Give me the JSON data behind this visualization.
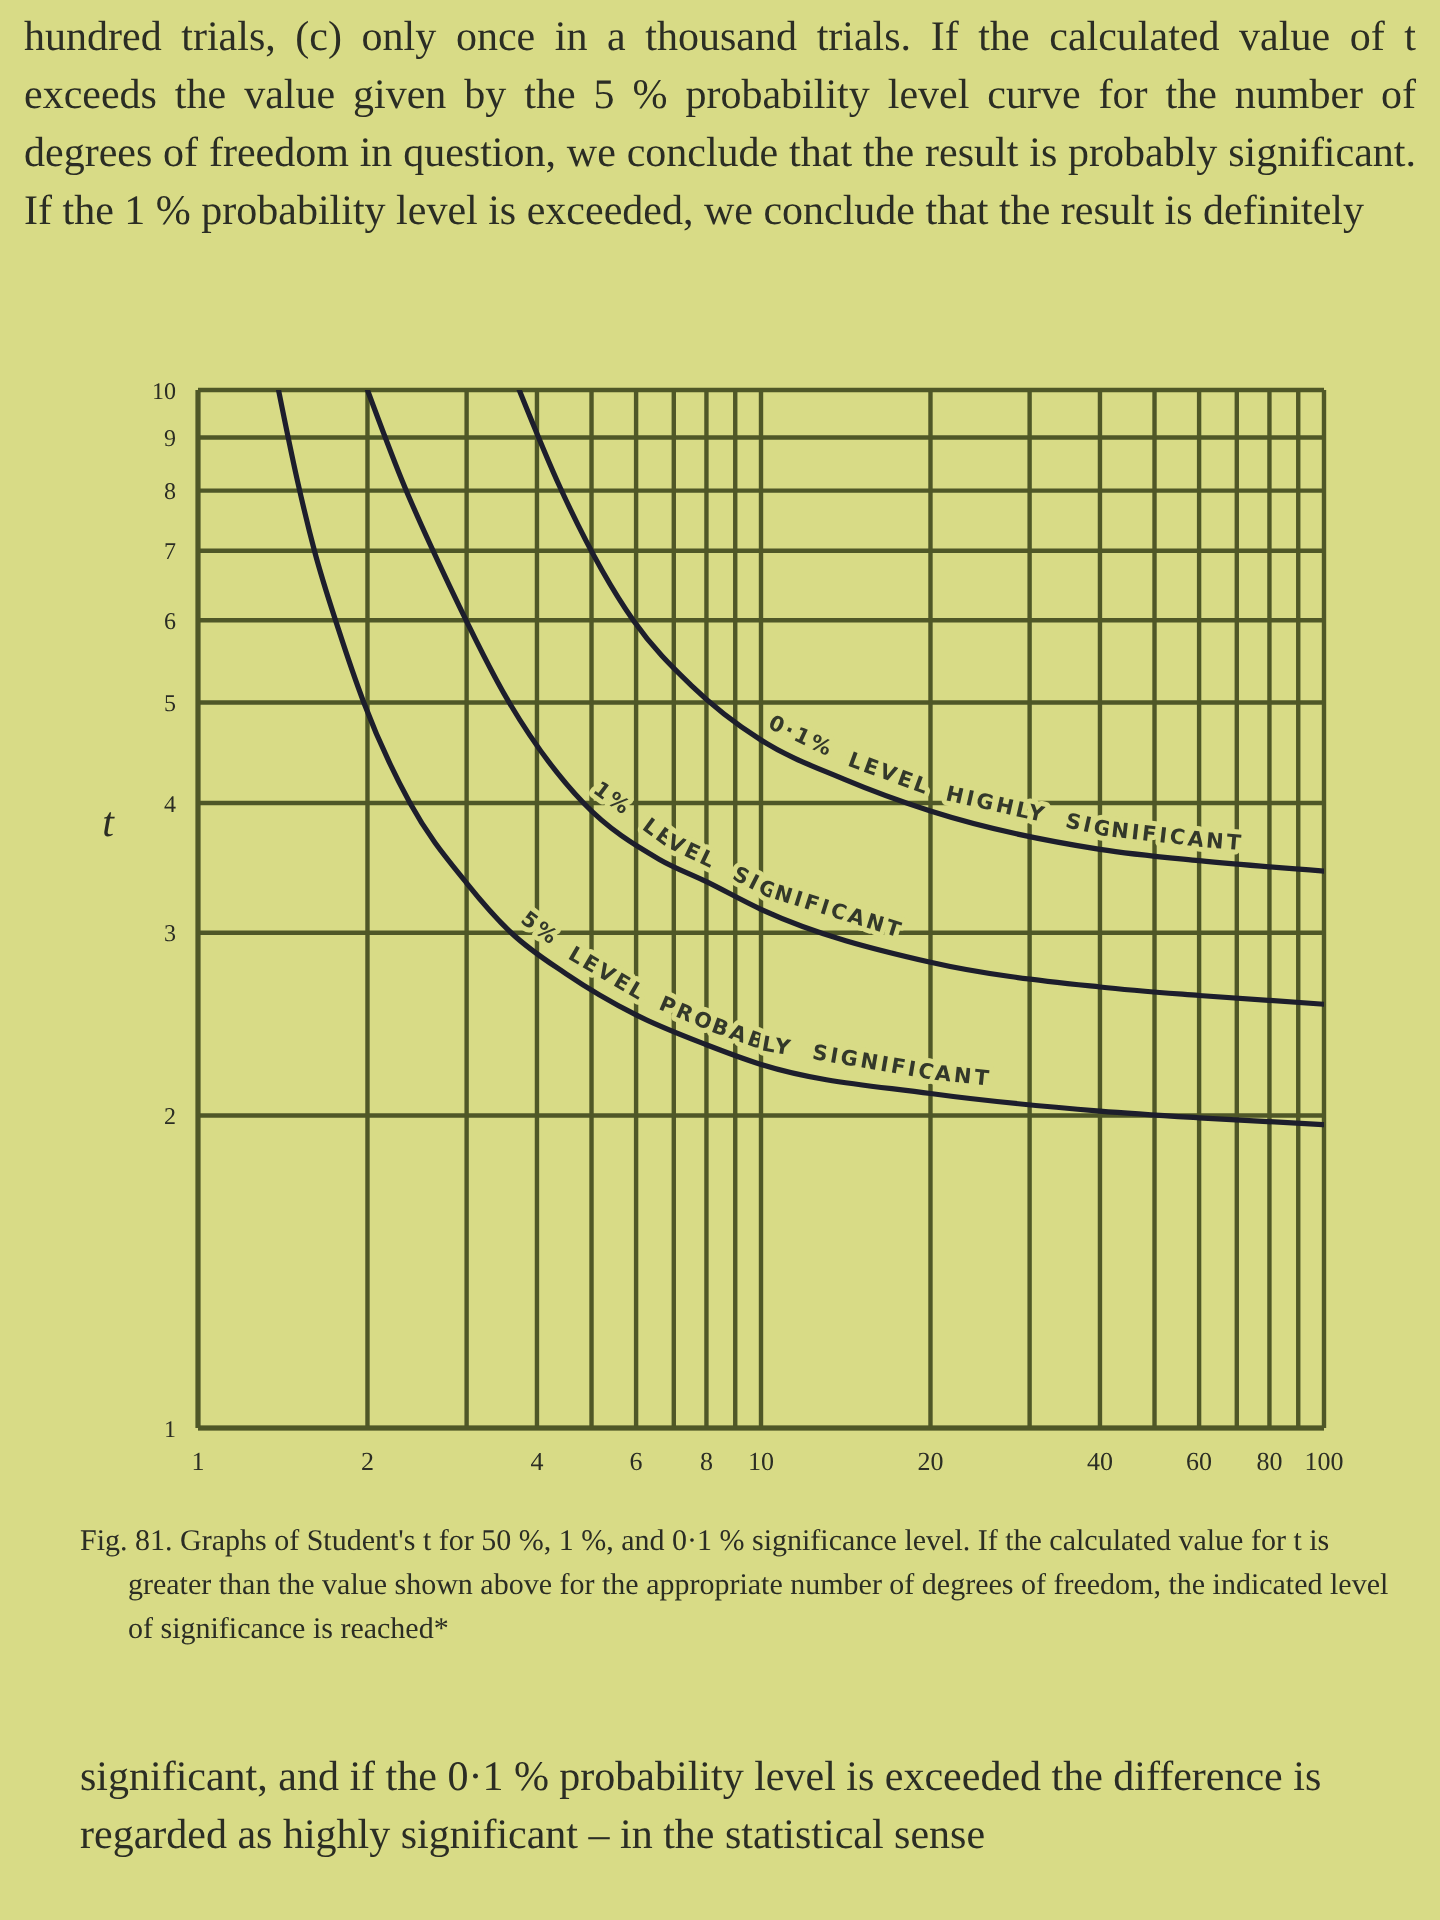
{
  "chart_data": {
    "type": "line",
    "annotations": [
      "hundred trials, (c) only once in a thousand trials. If the calculated value of t exceeds the value given by the 5 % probability level curve for the number of degrees of freedom in question, we conclude that the result is probably significant. If the 1 % probability level is exceeded, we conclude that the result is definitely",
      "Fig. 81. Graphs of Student's t for 50 %, 1 %, and 0·1 % significance level. If the calculated value for t is greater than the value shown above for the appropriate number of degrees of freedom, the indicated level of significance is reached*",
      "significant, and if the 0·1 % probability level is exceeded the difference is regarded as highly significant – in the statistical sense"
    ],
    "ylabel": "t",
    "series": [
      {
        "name": "0·1% LEVEL HIGHLY SIGNIFICANT",
        "color": "#1d1e2c",
        "x": [
          3.72,
          4.4,
          5.93,
          7.5,
          10,
          14,
          20,
          40,
          60,
          100
        ],
        "values": [
          10,
          8.05,
          6,
          5.2,
          4.6,
          4.22,
          3.93,
          3.61,
          3.52,
          3.44
        ]
      },
      {
        "name": "1% LEVEL SIGNIFICANT",
        "color": "#1d1e2c",
        "x": [
          2,
          2.3,
          2.8,
          3.57,
          4.84,
          6.6,
          8,
          10,
          20,
          40,
          60,
          100
        ],
        "values": [
          10,
          8.2,
          6.47,
          5,
          4,
          3.53,
          3.36,
          3.16,
          2.81,
          2.66,
          2.61,
          2.56
        ]
      },
      {
        "name": "5% LEVEL PROBABLY SIGNIFICANT",
        "color": "#1d1e2c",
        "x": [
          1.39,
          1.5,
          1.61,
          1.78,
          1.97,
          2.38,
          3,
          3.6,
          4.5,
          6,
          8,
          10,
          20,
          40,
          60,
          100
        ],
        "values": [
          10,
          8.2,
          7,
          5.86,
          5,
          4,
          3.35,
          3,
          2.74,
          2.5,
          2.34,
          2.24,
          2.1,
          2.02,
          1.99,
          1.96
        ]
      }
    ],
    "xlim": [
      1,
      100
    ],
    "ylim": [
      1,
      10
    ],
    "xticks": [
      1,
      2,
      {
        "value": 3,
        "label": null
      },
      4,
      {
        "value": 5,
        "label": null
      },
      6,
      {
        "value": 7,
        "label": null
      },
      8,
      {
        "value": 9,
        "label": null
      },
      10,
      20,
      {
        "value": 30,
        "label": null
      },
      40,
      {
        "value": 50,
        "label": null
      },
      60,
      {
        "value": 70,
        "label": null
      },
      80,
      {
        "value": 90,
        "label": null
      },
      100
    ],
    "yticks": [
      1,
      2,
      3,
      4,
      5,
      6,
      7,
      8,
      9,
      10
    ],
    "log": "xy",
    "grid": true,
    "marker": "none",
    "line_style": "solid"
  }
}
